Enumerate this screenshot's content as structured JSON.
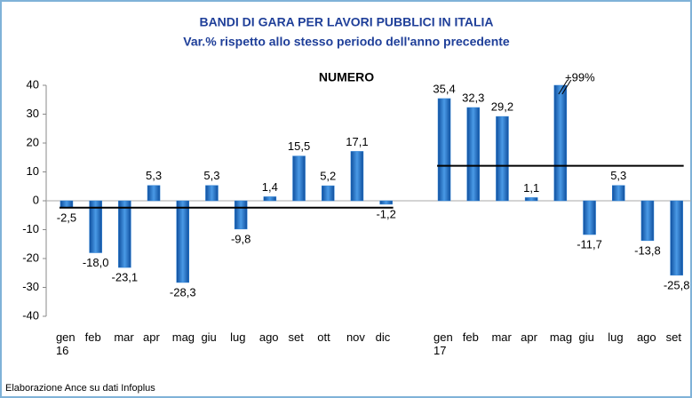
{
  "chart_data": {
    "type": "bar",
    "title": "BANDI DI GARA PER LAVORI PUBBLICI IN ITALIA",
    "subtitle": "Var.% rispetto allo stesso periodo dell'anno precedente",
    "annotation": "NUMERO",
    "source": "Elaborazione Ance su dati Infoplus",
    "categories": [
      "gen 16",
      "feb",
      "mar",
      "apr",
      "mag",
      "giu",
      "lug",
      "ago",
      "set",
      "ott",
      "nov",
      "dic",
      null,
      "gen 17",
      "feb",
      "mar",
      "apr",
      "mag",
      "giu",
      "lug",
      "ago",
      "set"
    ],
    "values": [
      -2.5,
      -18.0,
      -23.1,
      5.3,
      -28.3,
      5.3,
      -9.8,
      1.4,
      15.5,
      5.2,
      17.1,
      -1.2,
      null,
      35.4,
      32.3,
      29.2,
      1.1,
      99,
      -11.7,
      5.3,
      -13.8,
      -25.8
    ],
    "value_labels": [
      "-2,5",
      "-18,0",
      "-23,1",
      "5,3",
      "-28,3",
      "5,3",
      "-9,8",
      "1,4",
      "15,5",
      "5,2",
      "17,1",
      "-1,2",
      null,
      "35,4",
      "32,3",
      "29,2",
      "1,1",
      "+99%",
      "-11,7",
      "5,3",
      "-13,8",
      "-25,8"
    ],
    "color": "#2a7fd4",
    "averages": [
      {
        "value": -2.4,
        "start": 0,
        "end": 11
      },
      {
        "value": 12.1,
        "start": 13,
        "end": 21
      }
    ],
    "ylim": [
      -40,
      40
    ],
    "yticks": [
      -40,
      -30,
      -20,
      -10,
      0,
      10,
      20,
      30,
      40
    ]
  }
}
